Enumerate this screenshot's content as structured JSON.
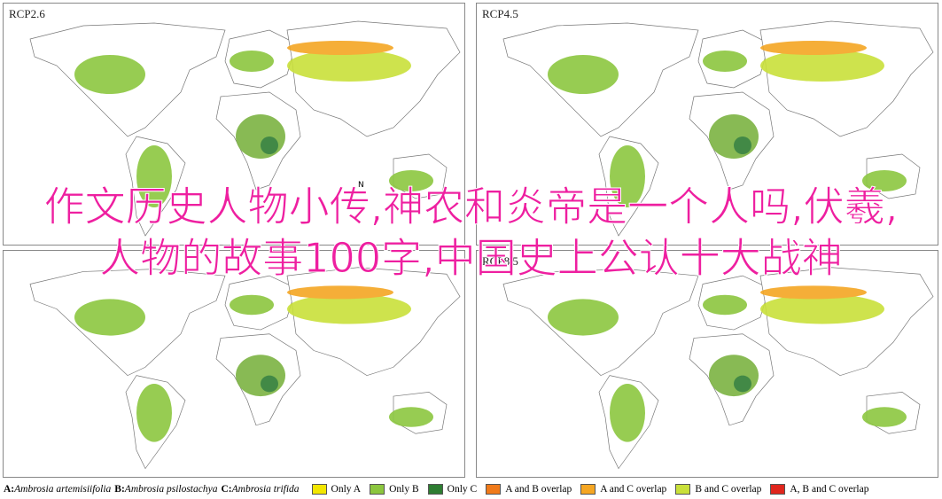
{
  "panels": {
    "top_left": "RCP2.6",
    "top_right": "RCP4.5",
    "bottom_right": "RCP8.5"
  },
  "north_label": "N",
  "overlay_title": "作文历史人物小传,神农和炎帝是一个人吗,伏羲,人物的故事100字,中国史上公认十大战神",
  "legend": {
    "species": [
      {
        "key": "A:",
        "name": "Ambrosia artemisiifolia"
      },
      {
        "key": "B:",
        "name": "Ambrosia psilostachya"
      },
      {
        "key": "C:",
        "name": "Ambrosia trifida"
      }
    ],
    "items": [
      {
        "label": "Only A",
        "color": "#f2e600"
      },
      {
        "label": "Only B",
        "color": "#8cc63f"
      },
      {
        "label": "Only C",
        "color": "#2e7d32"
      },
      {
        "label": "A and B overlap",
        "color": "#f07a1a"
      },
      {
        "label": "A and C overlap",
        "color": "#f5a623"
      },
      {
        "label": "B and C overlap",
        "color": "#c9e03a"
      },
      {
        "label": "A, B and C overlap",
        "color": "#e0261d"
      }
    ]
  }
}
